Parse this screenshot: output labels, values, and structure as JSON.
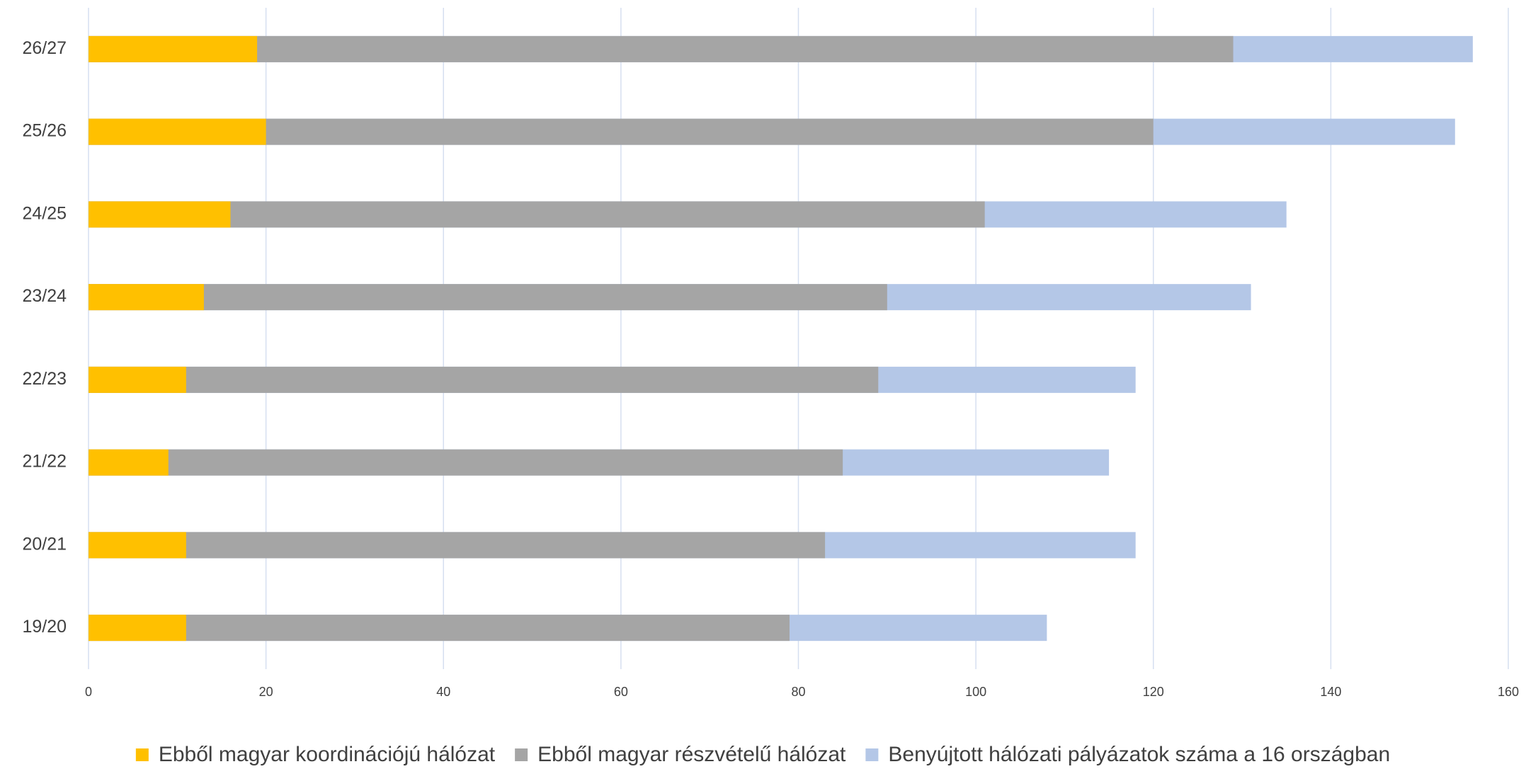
{
  "chart_data": {
    "type": "bar",
    "orientation": "horizontal",
    "overlap": true,
    "categories": [
      "19/20",
      "20/21",
      "21/22",
      "22/23",
      "23/24",
      "24/25",
      "25/26",
      "26/27"
    ],
    "series": [
      {
        "name": "Ebből magyar koordinációjú hálózat",
        "color": "#ffc000",
        "values": [
          11,
          11,
          9,
          11,
          13,
          16,
          20,
          19
        ]
      },
      {
        "name": "Ebből magyar részvételű hálózat",
        "color": "#a5a5a5",
        "values": [
          79,
          83,
          85,
          89,
          90,
          101,
          120,
          129
        ]
      },
      {
        "name": "Benyújtott hálózati pályázatok száma a 16 országban",
        "color": "#b4c7e7",
        "values": [
          108,
          118,
          115,
          118,
          131,
          135,
          154,
          156
        ]
      }
    ],
    "xlim": [
      0,
      160
    ],
    "xticks": [
      0,
      20,
      40,
      60,
      80,
      100,
      120,
      140,
      160
    ],
    "grid": true,
    "legend": "bottom"
  }
}
